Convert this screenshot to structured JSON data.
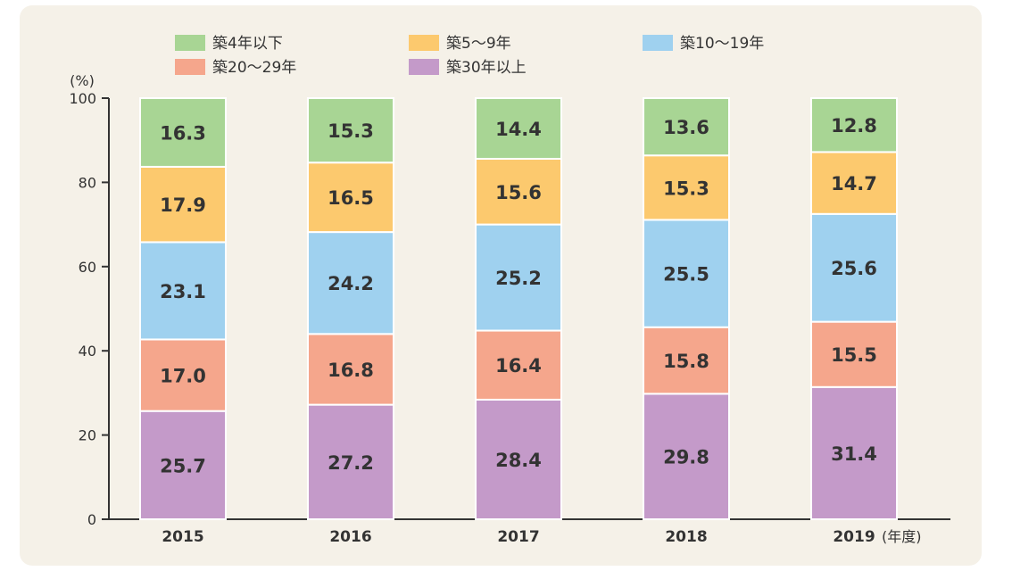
{
  "chart_data": {
    "type": "bar",
    "stacked": true,
    "categories": [
      "2015",
      "2016",
      "2017",
      "2018",
      "2019"
    ],
    "x_unit": "(年度)",
    "y_unit": "(%)",
    "ylim": [
      0,
      100
    ],
    "yticks": [
      0,
      20,
      40,
      60,
      80,
      100
    ],
    "grid": false,
    "legend_position": "top",
    "series": [
      {
        "name": "築30年以上",
        "color": "#c49ac9",
        "values": [
          25.7,
          27.2,
          28.4,
          29.8,
          31.4
        ]
      },
      {
        "name": "築20～29年",
        "color": "#f5a68c",
        "values": [
          17.0,
          16.8,
          16.4,
          15.8,
          15.5
        ]
      },
      {
        "name": "築10～19年",
        "color": "#9fd1ef",
        "values": [
          23.1,
          24.2,
          25.2,
          25.5,
          25.6
        ]
      },
      {
        "name": "築5～9年",
        "color": "#fcc96e",
        "values": [
          17.9,
          16.5,
          15.6,
          15.3,
          14.7
        ]
      },
      {
        "name": "築4年以下",
        "color": "#a8d594",
        "values": [
          16.3,
          15.3,
          14.4,
          13.6,
          12.8
        ]
      }
    ],
    "legend_order": [
      "築4年以下",
      "築5～9年",
      "築10～19年",
      "築20～29年",
      "築30年以上"
    ]
  }
}
